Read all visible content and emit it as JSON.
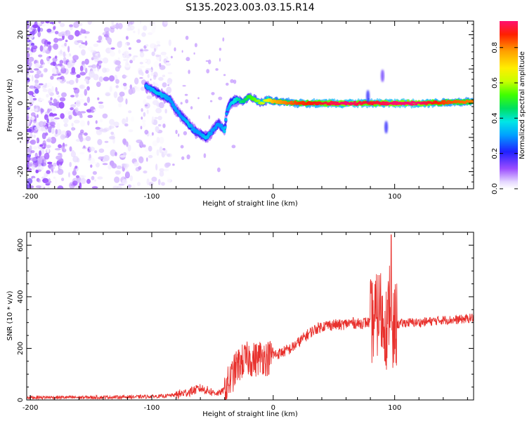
{
  "title": "S135.2023.003.03.15.R14",
  "chart_data": [
    {
      "type": "heatmap",
      "xlabel": "Height of straight line (km)",
      "ylabel": "Frequency (Hz)",
      "xlim": [
        -203,
        165
      ],
      "ylim": [
        -25,
        24
      ],
      "x_ticks": [
        -200,
        -100,
        0,
        100
      ],
      "y_ticks": [
        -20,
        -10,
        0,
        10,
        20
      ],
      "colorbar": {
        "label": "Normalized spectral amplitude",
        "range": [
          0,
          0.95
        ],
        "ticks": [
          "0.0",
          "0.2",
          "0.4",
          "0.6",
          "0.8"
        ]
      },
      "ridge": {
        "x": [
          -105,
          -95,
          -85,
          -80,
          -75,
          -70,
          -65,
          -60,
          -55,
          -50,
          -45,
          -42,
          -40,
          -38,
          -35,
          -30,
          -25,
          -20,
          -15,
          -10,
          -5,
          0,
          20,
          40,
          60,
          80,
          100,
          120,
          140,
          165
        ],
        "y": [
          5,
          3,
          1,
          -2,
          -4,
          -6,
          -8,
          -9,
          -10,
          -8,
          -6,
          -7,
          -8,
          -2,
          0,
          1,
          0.5,
          2,
          1,
          0,
          1,
          0.5,
          0,
          0,
          0,
          0,
          0,
          0,
          0.2,
          0.5
        ],
        "amplitude": [
          0.3,
          0.35,
          0.3,
          0.3,
          0.3,
          0.35,
          0.3,
          0.3,
          0.35,
          0.3,
          0.3,
          0.3,
          0.35,
          0.3,
          0.35,
          0.4,
          0.45,
          0.5,
          0.55,
          0.6,
          0.65,
          0.75,
          0.85,
          0.9,
          0.95,
          0.9,
          0.95,
          0.95,
          0.85,
          0.8
        ]
      },
      "noise_extent": {
        "x": [
          -203,
          -90
        ],
        "y": [
          -25,
          24
        ],
        "amplitude": [
          0,
          0.15
        ]
      }
    },
    {
      "type": "line",
      "xlabel": "Height of straight line (km)",
      "ylabel": "SNR (10 * v/v)",
      "xlim": [
        -203,
        165
      ],
      "ylim": [
        0,
        650
      ],
      "x_ticks": [
        -200,
        -100,
        0,
        100
      ],
      "y_ticks": [
        0,
        200,
        400,
        600
      ],
      "color": "#e8302c",
      "series": [
        {
          "x": [
            -203,
            -150,
            -110,
            -90,
            -80,
            -70,
            -60,
            -50,
            -45,
            -40,
            -35,
            -30,
            -25,
            -20,
            -15,
            -10,
            -5,
            0,
            5,
            10,
            15,
            20,
            25,
            30,
            35,
            40,
            45,
            50,
            55,
            60,
            65,
            70,
            75,
            80,
            85,
            88,
            90,
            92,
            94,
            96,
            98,
            100,
            105,
            110,
            120,
            130,
            140,
            150,
            160,
            165
          ],
          "y": [
            10,
            10,
            12,
            15,
            20,
            30,
            45,
            30,
            25,
            40,
            80,
            130,
            150,
            160,
            155,
            170,
            160,
            175,
            180,
            190,
            200,
            220,
            240,
            260,
            275,
            285,
            290,
            292,
            290,
            295,
            300,
            295,
            300,
            300,
            320,
            360,
            300,
            320,
            250,
            420,
            200,
            290,
            295,
            300,
            300,
            305,
            310,
            310,
            315,
            320
          ]
        }
      ]
    }
  ]
}
